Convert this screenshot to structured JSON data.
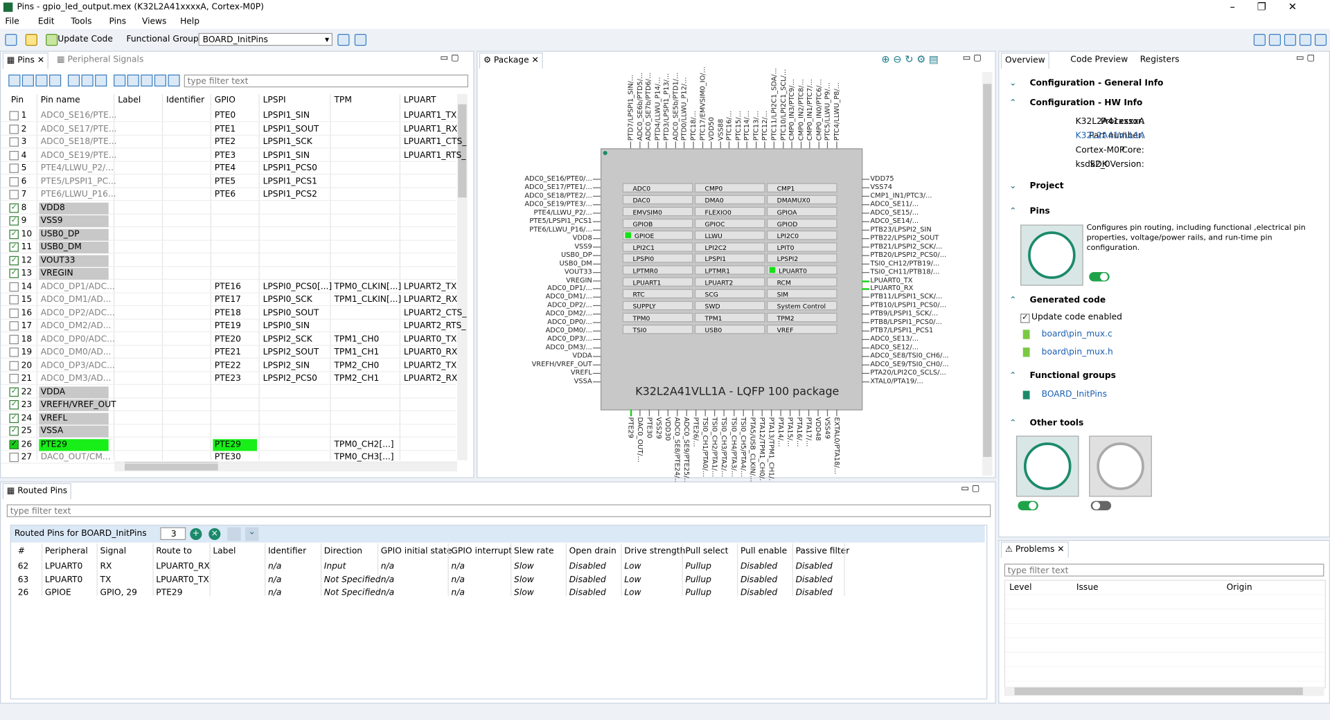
{
  "window": {
    "title": "Pins - gpio_led_output.mex (K32L2A41xxxxA, Cortex-M0P)"
  },
  "menu": [
    "File",
    "Edit",
    "Tools",
    "Pins",
    "Views",
    "Help"
  ],
  "toolbar": {
    "update_code": "Update Code",
    "functional_group_label": "Functional Group",
    "functional_group": "BOARD_InitPins"
  },
  "pins_view": {
    "tabs": [
      "Pins",
      "Peripheral Signals"
    ],
    "filter_placeholder": "type filter text",
    "columns": [
      "Pin",
      "Pin name",
      "Label",
      "Identifier",
      "GPIO",
      "LPSPI",
      "TPM",
      "LPUART"
    ],
    "rows": [
      {
        "cells": [
          1,
          "ADC0_SE16/PTE...",
          null,
          null,
          "PTE0",
          "LPSPI1_SIN",
          null,
          "LPUART1_TX"
        ],
        "checked": false,
        "state": "free"
      },
      {
        "cells": [
          2,
          "ADC0_SE17/PTE...",
          null,
          null,
          "PTE1",
          "LPSPI1_SOUT",
          null,
          "LPUART1_RX"
        ],
        "checked": false,
        "state": "free"
      },
      {
        "cells": [
          3,
          "ADC0_SE18/PTE...",
          null,
          null,
          "PTE2",
          "LPSPI1_SCK",
          null,
          "LPUART1_CTS_"
        ],
        "checked": false,
        "state": "free"
      },
      {
        "cells": [
          4,
          "ADC0_SE19/PTE...",
          null,
          null,
          "PTE3",
          "LPSPI1_SIN",
          null,
          "LPUART1_RTS_"
        ],
        "checked": false,
        "state": "free"
      },
      {
        "cells": [
          5,
          "PTE4/LLWU_P2/...",
          null,
          null,
          "PTE4",
          "LPSPI1_PCS0",
          null,
          null
        ],
        "checked": false,
        "state": "free"
      },
      {
        "cells": [
          6,
          "PTE5/LPSPI1_PC...",
          null,
          null,
          "PTE5",
          "LPSPI1_PCS1",
          null,
          null
        ],
        "checked": false,
        "state": "free"
      },
      {
        "cells": [
          7,
          "PTE6/LLWU_P16...",
          null,
          null,
          "PTE6",
          "LPSPI1_PCS2",
          null,
          null
        ],
        "checked": false,
        "state": "free"
      },
      {
        "cells": [
          8,
          "VDD8",
          null,
          null,
          null,
          null,
          null,
          null
        ],
        "checked": true,
        "state": "power"
      },
      {
        "cells": [
          9,
          "VSS9",
          null,
          null,
          null,
          null,
          null,
          null
        ],
        "checked": true,
        "state": "power"
      },
      {
        "cells": [
          10,
          "USB0_DP",
          null,
          null,
          null,
          null,
          null,
          null
        ],
        "checked": true,
        "state": "power"
      },
      {
        "cells": [
          11,
          "USB0_DM",
          null,
          null,
          null,
          null,
          null,
          null
        ],
        "checked": true,
        "state": "power"
      },
      {
        "cells": [
          12,
          "VOUT33",
          null,
          null,
          null,
          null,
          null,
          null
        ],
        "checked": true,
        "state": "power"
      },
      {
        "cells": [
          13,
          "VREGIN",
          null,
          null,
          null,
          null,
          null,
          null
        ],
        "checked": true,
        "state": "power"
      },
      {
        "cells": [
          14,
          "ADC0_DP1/ADC...",
          null,
          null,
          "PTE16",
          "LPSPI0_PCS0[...]",
          "TPM0_CLKIN[...]",
          "LPUART2_TX"
        ],
        "checked": false,
        "state": "free"
      },
      {
        "cells": [
          15,
          "ADC0_DM1/AD...",
          null,
          null,
          "PTE17",
          "LPSPI0_SCK",
          "TPM1_CLKIN[...]",
          "LPUART2_RX"
        ],
        "checked": false,
        "state": "free"
      },
      {
        "cells": [
          16,
          "ADC0_DP2/ADC...",
          null,
          null,
          "PTE18",
          "LPSPI0_SOUT",
          null,
          "LPUART2_CTS_"
        ],
        "checked": false,
        "state": "free"
      },
      {
        "cells": [
          17,
          "ADC0_DM2/AD...",
          null,
          null,
          "PTE19",
          "LPSPI0_SIN",
          null,
          "LPUART2_RTS_"
        ],
        "checked": false,
        "state": "free"
      },
      {
        "cells": [
          18,
          "ADC0_DP0/ADC...",
          null,
          null,
          "PTE20",
          "LPSPI2_SCK",
          "TPM1_CH0",
          "LPUART0_TX"
        ],
        "checked": false,
        "state": "free"
      },
      {
        "cells": [
          19,
          "ADC0_DM0/AD...",
          null,
          null,
          "PTE21",
          "LPSPI2_SOUT",
          "TPM1_CH1",
          "LPUART0_RX"
        ],
        "checked": false,
        "state": "free"
      },
      {
        "cells": [
          20,
          "ADC0_DP3/ADC...",
          null,
          null,
          "PTE22",
          "LPSPI2_SIN",
          "TPM2_CH0",
          "LPUART2_TX"
        ],
        "checked": false,
        "state": "free"
      },
      {
        "cells": [
          21,
          "ADC0_DM3/AD...",
          null,
          null,
          "PTE23",
          "LPSPI2_PCS0",
          "TPM2_CH1",
          "LPUART2_RX"
        ],
        "checked": false,
        "state": "free"
      },
      {
        "cells": [
          22,
          "VDDA",
          null,
          null,
          null,
          null,
          null,
          null
        ],
        "checked": true,
        "state": "power"
      },
      {
        "cells": [
          23,
          "VREFH/VREF_OUT",
          null,
          null,
          null,
          null,
          null,
          null
        ],
        "checked": true,
        "state": "power"
      },
      {
        "cells": [
          24,
          "VREFL",
          null,
          null,
          null,
          null,
          null,
          null
        ],
        "checked": true,
        "state": "power"
      },
      {
        "cells": [
          25,
          "VSSA",
          null,
          null,
          null,
          null,
          null,
          null
        ],
        "checked": true,
        "state": "power"
      },
      {
        "cells": [
          26,
          "PTE29",
          null,
          null,
          "PTE29",
          null,
          "TPM0_CH2[...]",
          null
        ],
        "checked": true,
        "state": "routed"
      },
      {
        "cells": [
          27,
          "DAC0_OUT/CM...",
          null,
          null,
          "PTE30",
          null,
          "TPM0_CH3[...]",
          null
        ],
        "checked": false,
        "state": "free"
      }
    ]
  },
  "package_view": {
    "tab": "Package",
    "chip_label": "K32L2A41VLL1A - LQFP 100 package",
    "peripherals": [
      [
        "ADC0",
        "DAC0",
        "EMVSIM0",
        "GPIOB",
        "GPIOE",
        "LPI2C1",
        "LPSPI0",
        "LPTMR0",
        "LPUART1",
        "RTC",
        "SUPPLY",
        "TPM0",
        "TSI0"
      ],
      [
        "CMP0",
        "DMA0",
        "FLEXIO0",
        "GPIOC",
        "LLWU",
        "LPI2C2",
        "LPSPI1",
        "LPTMR1",
        "LPUART2",
        "SCG",
        "SWD",
        "TPM1",
        "USB0"
      ],
      [
        "CMP1",
        "DMAMUX0",
        "GPIOA",
        "GPIOD",
        "LPI2C0",
        "LPIT0",
        "LPSPI2",
        "LPUART0",
        "RCM",
        "SIM",
        "System Control",
        "TPM2",
        "VREF"
      ]
    ],
    "active_peripherals": [
      "GPIOE",
      "LPUART0"
    ],
    "left_pins": [
      "ADC0_SE16/PTE0/...",
      "ADC0_SE17/PTE1/...",
      "ADC0_SE18/PTE2/...",
      "ADC0_SE19/PTE3/...",
      "PTE4/LLWU_P2/...",
      "PTE5/LPSPI1_PCS1",
      "PTE6/LLWU_P16/...",
      "VDD8",
      "VSS9",
      "USB0_DP",
      "USB0_DM",
      "VOUT33",
      "VREGIN",
      "ADC0_DP1/...",
      "ADC0_DM1/...",
      "ADC0_DP2/...",
      "ADC0_DM2/...",
      "ADC0_DP0/...",
      "ADC0_DM0/...",
      "ADC0_DP3/...",
      "ADC0_DM3/...",
      "VDDA",
      "VREFH/VREF_OUT",
      "VREFL",
      "VSSA"
    ],
    "right_pins": [
      "VDD75",
      "VSS74",
      "CMP1_IN1/PTC3/...",
      "ADC0_SE11/...",
      "ADC0_SE15/...",
      "ADC0_SE14/...",
      "PTB23/LPSPI2_SIN",
      "PTB22/LPSPI2_SOUT",
      "PTB21/LPSPI2_SCK/...",
      "PTB20/LPSPI2_PCS0/...",
      "TSI0_CH12/PTB19/...",
      "TSI0_CH11/PTB18/...",
      "LPUART0_TX",
      "LPUART0_RX",
      "PTB11/LPSPI1_SCK/...",
      "PTB10/LPSPI1_PCS0/...",
      "PTB9/LPSPI1_SCK/...",
      "PTB8/LPSPI1_PCS0/...",
      "PTB7/LPSPI1_PCS1",
      "ADC0_SE13/...",
      "ADC0_SE12/...",
      "ADC0_SE8/TSI0_CH6/...",
      "ADC0_SE9/TSI0_CH0/...",
      "PTA20/LPI2C0_SCLS/...",
      "XTAL0/PTA19/..."
    ],
    "routed_right_pins": [
      "LPUART0_TX",
      "LPUART0_RX"
    ],
    "top_pins": [
      "PTD7/LPSPI1_SIN/...",
      "ADC0_SE6b/PTD5/...",
      "ADC0_SE7b/PTD6/...",
      "PTD4/LLWU_P14/...",
      "PTD3/LPSPI1_P13/...",
      "ADC0_SE5b/PTD1/...",
      "PTD0/LLWU_P12/...",
      "PTC18/...",
      "PTC17/EMVSIM0_IO/...",
      "VDD50",
      "VSS88",
      "PTC16/...",
      "PTC15/...",
      "PTC14/...",
      "PTC13/...",
      "PTC12/...",
      "PTC11/LPI2C1_SDA/...",
      "PTC10/LPI2C1_SCL/...",
      "CMP0_IN3/PTC9/...",
      "CMP0_IN2/PTC8/...",
      "CMP0_IN1/PTC7/...",
      "CMP0_IN0/PTC6/...",
      "PTC5/LLWU_P9/...",
      "PTC4/LLWU_P8/..."
    ],
    "bottom_pins": [
      "PTE29",
      "DAC0_OUT/...",
      "PTE30",
      "VSS29",
      "VDD30",
      "ADC0_SE8/PTE24/...",
      "ADC0_SE9/PTE25/...",
      "PTE26/...",
      "TSI0_CH1/PTA0/...",
      "TSI0_CH2/PTA1/...",
      "TSI0_CH3/PTA2/...",
      "TSI0_CH4/PTA3/...",
      "TSI0_CH5/PTA4/...",
      "PTA5/USB_CLKIN/...",
      "PTA12/TPM1_CH0/...",
      "PTA13/TPM1_CH1/...",
      "PTA14/...",
      "PTA15/...",
      "PTA16/...",
      "PTA17/...",
      "VDD48",
      "VSS49",
      "EXTAL0/PTA18/..."
    ],
    "routed_bottom_pins": [
      "PTE29"
    ]
  },
  "overview": {
    "tabs": [
      "Overview",
      "Code Preview",
      "Registers"
    ],
    "general_info": "Configuration - General Info",
    "hw_info": {
      "title": "Configuration - HW Info",
      "fields": [
        [
          "Processor:",
          "K32L2A41xxxxA"
        ],
        [
          "Part number:",
          "K32L2A41VLL1A"
        ],
        [
          "Core:",
          "Cortex-M0P"
        ],
        [
          "SDK Version:",
          "ksdk2_0"
        ]
      ]
    },
    "project": "Project",
    "pins": {
      "title": "Pins",
      "description": "Configures pin routing, including functional ,electrical pin properties, voltage/power rails, and run-time pin configuration.",
      "enabled": true
    },
    "generated_code": {
      "title": "Generated code",
      "update_label": "Update code enabled",
      "update_enabled": true,
      "files": [
        "board\\pin_mux.c",
        "board\\pin_mux.h"
      ]
    },
    "functional_groups": {
      "title": "Functional groups",
      "items": [
        "BOARD_InitPins"
      ]
    },
    "other_tools": {
      "title": "Other tools",
      "toggles": [
        true,
        false
      ]
    }
  },
  "problems": {
    "tab": "Problems",
    "filter_placeholder": "type filter text",
    "columns": [
      "Level",
      "Issue",
      "Origin"
    ]
  },
  "routed_pins": {
    "tab": "Routed Pins",
    "filter_placeholder": "type filter text",
    "header": "Routed Pins for BOARD_InitPins",
    "count": 3,
    "columns": [
      "#",
      "Peripheral",
      "Signal",
      "Route to",
      "Label",
      "Identifier",
      "Direction",
      "GPIO initial state",
      "GPIO interrupt",
      "Slew rate",
      "Open drain",
      "Drive strength",
      "Pull select",
      "Pull enable",
      "Passive filter"
    ],
    "rows": [
      [
        62,
        "LPUART0",
        "RX",
        "LPUART0_RX",
        null,
        "n/a",
        "Input",
        "n/a",
        "n/a",
        "Slow",
        "Disabled",
        "Low",
        "Pullup",
        "Disabled",
        "Disabled"
      ],
      [
        63,
        "LPUART0",
        "TX",
        "LPUART0_TX",
        null,
        "n/a",
        "Not Specified",
        "n/a",
        "n/a",
        "Slow",
        "Disabled",
        "Low",
        "Pullup",
        "Disabled",
        "Disabled"
      ],
      [
        26,
        "GPIOE",
        "GPIO, 29",
        "PTE29",
        null,
        "n/a",
        "Not Specified",
        "n/a",
        "n/a",
        "Slow",
        "Disabled",
        "Low",
        "Pullup",
        "Disabled",
        "Disabled"
      ]
    ]
  }
}
